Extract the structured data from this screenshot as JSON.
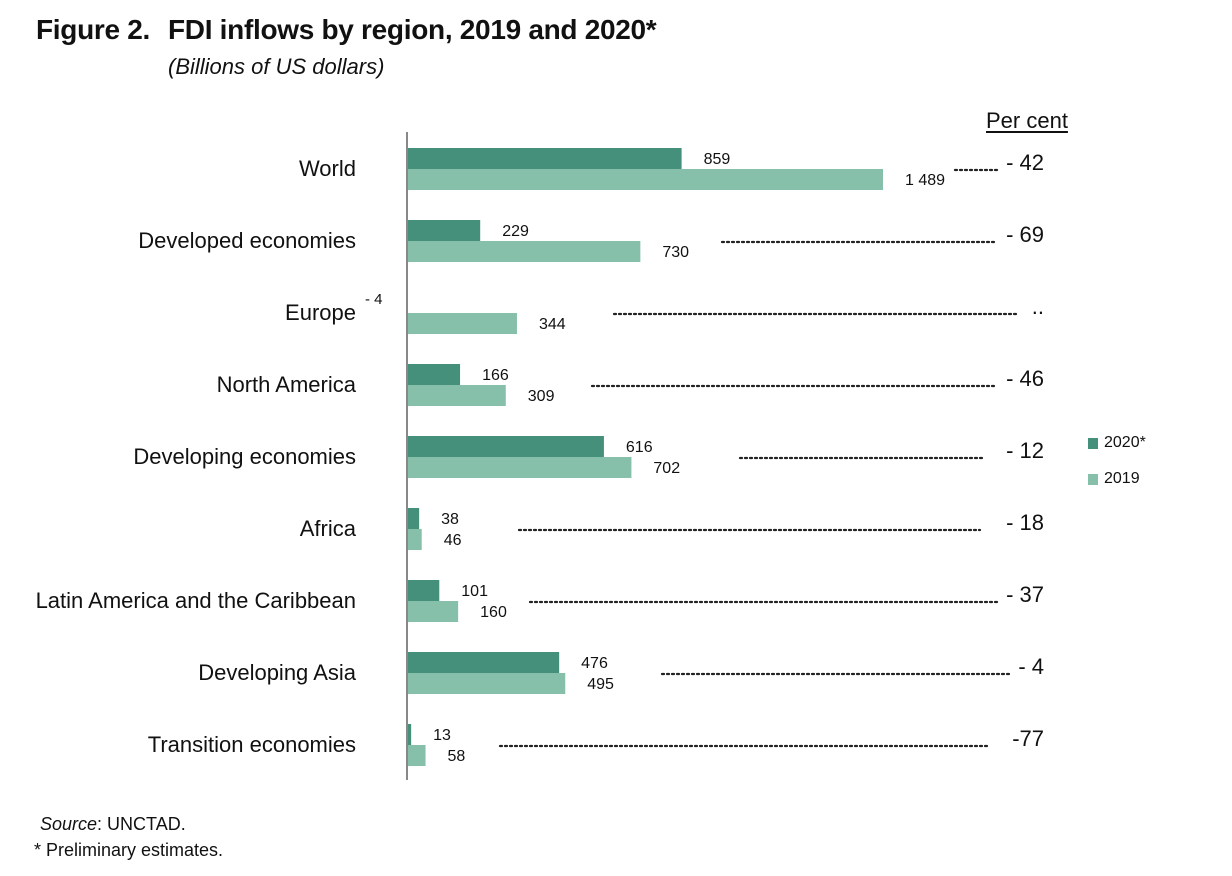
{
  "title": {
    "figure_number": "Figure 2.",
    "text": "FDI inflows by region, 2019 and 2020*"
  },
  "subtitle": "(Billions of US dollars)",
  "percent_header": "Per cent",
  "source": {
    "label": "Source",
    "text": ": UNCTAD."
  },
  "footnote": "* Preliminary estimates.",
  "colors": {
    "2020": "#44907a",
    "2019": "#86bfaa",
    "axis": "#888888"
  },
  "chart_data": {
    "type": "bar",
    "orientation": "horizontal",
    "title": "FDI inflows by region, 2019 and 2020*",
    "xlabel": "",
    "ylabel": "",
    "xlim": [
      0,
      1489
    ],
    "legend_position": "right",
    "grid": false,
    "categories": [
      "World",
      "Developed economies",
      "Europe",
      "North America",
      "Developing economies",
      "Africa",
      "Latin America and the Caribbean",
      "Developing Asia",
      "Transition economies"
    ],
    "series": [
      {
        "name": "2020*",
        "values": [
          859,
          229,
          -4,
          166,
          616,
          38,
          101,
          476,
          13
        ],
        "labels": [
          "859",
          "229",
          "- 4",
          "166",
          "616",
          "38",
          "101",
          "476",
          "13"
        ]
      },
      {
        "name": "2019",
        "values": [
          1489,
          730,
          344,
          309,
          702,
          46,
          160,
          495,
          58
        ],
        "labels": [
          "1 489",
          "730",
          "344",
          "309",
          "702",
          "46",
          "160",
          "495",
          "58"
        ]
      }
    ],
    "percent_change": [
      "- 42",
      "- 69",
      "..",
      "- 46",
      "- 12",
      "- 18",
      "- 37",
      "- 4",
      "-77"
    ]
  }
}
